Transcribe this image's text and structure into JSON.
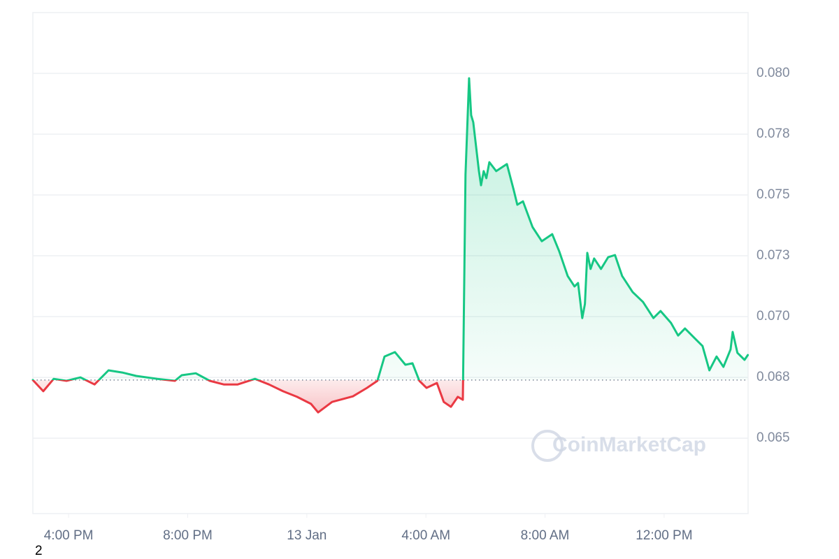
{
  "chart_data": {
    "type": "line",
    "watermark": "CoinMarketCap",
    "page_label": "2",
    "color_up": "#16c784",
    "color_down": "#ea3943",
    "reference": 0.06739,
    "xlim": [
      14.8,
      38.82
    ],
    "xticks": [
      {
        "value": 16,
        "label": "4:00 PM"
      },
      {
        "value": 20,
        "label": "8:00 PM"
      },
      {
        "value": 24,
        "label": "13 Jan"
      },
      {
        "value": 28,
        "label": "4:00 AM"
      },
      {
        "value": 32,
        "label": "8:00 AM"
      },
      {
        "value": 36,
        "label": "12:00 PM"
      }
    ],
    "ylim": [
      0.0619,
      0.0825
    ],
    "yticks": [
      0.065,
      {
        "value": 0.0675,
        "label": "0.068"
      },
      {
        "value": 0.07,
        "label": "0.070"
      },
      {
        "value": 0.0725,
        "label": "0.073"
      },
      0.075,
      {
        "value": 0.0775,
        "label": "0.078"
      },
      {
        "value": 0.08,
        "label": "0.080"
      }
    ],
    "grid": true,
    "x": [
      14.8,
      15.15,
      15.5,
      15.93,
      16.4,
      16.87,
      17.34,
      17.8,
      18.27,
      18.98,
      19.57,
      19.8,
      20.27,
      20.74,
      21.21,
      21.68,
      22.26,
      22.73,
      23.2,
      23.67,
      24.14,
      24.38,
      24.85,
      25.55,
      26.02,
      26.37,
      26.61,
      26.96,
      27.31,
      27.55,
      27.78,
      28.02,
      28.37,
      28.6,
      28.84,
      29.07,
      29.24,
      29.33,
      29.45,
      29.52,
      29.59,
      29.78,
      29.85,
      29.94,
      30.03,
      30.13,
      30.36,
      30.72,
      30.95,
      31.07,
      31.26,
      31.58,
      31.89,
      32.24,
      32.48,
      32.76,
      32.99,
      33.11,
      33.25,
      33.34,
      33.42,
      33.53,
      33.65,
      33.88,
      34.12,
      34.35,
      34.59,
      34.94,
      35.29,
      35.64,
      35.88,
      36.23,
      36.47,
      36.7,
      37.05,
      37.29,
      37.52,
      37.76,
      37.99,
      38.23,
      38.3,
      38.46,
      38.7,
      38.81
    ],
    "values": [
      0.06739,
      0.06693,
      0.06744,
      0.06736,
      0.0675,
      0.06721,
      0.06779,
      0.0677,
      0.06756,
      0.06744,
      0.06736,
      0.06759,
      0.06767,
      0.06736,
      0.06721,
      0.06721,
      0.06744,
      0.06721,
      0.06693,
      0.0667,
      0.06641,
      0.06606,
      0.06649,
      0.06672,
      0.06707,
      0.06736,
      0.06836,
      0.06854,
      0.06802,
      0.06808,
      0.06736,
      0.06707,
      0.06727,
      0.06649,
      0.06629,
      0.0667,
      0.06658,
      0.07584,
      0.0798,
      0.07828,
      0.07799,
      0.07598,
      0.0754,
      0.07598,
      0.07569,
      0.07635,
      0.07598,
      0.07627,
      0.0752,
      0.0746,
      0.07474,
      0.07368,
      0.0731,
      0.07339,
      0.07267,
      0.07167,
      0.07124,
      0.07138,
      0.06994,
      0.07052,
      0.07262,
      0.07196,
      0.07239,
      0.07196,
      0.07244,
      0.07253,
      0.07167,
      0.07101,
      0.0706,
      0.06994,
      0.07023,
      0.06974,
      0.06922,
      0.06951,
      0.06908,
      0.06879,
      0.06779,
      0.06836,
      0.06793,
      0.06865,
      0.06937,
      0.06851,
      0.06822,
      0.06842
    ]
  }
}
